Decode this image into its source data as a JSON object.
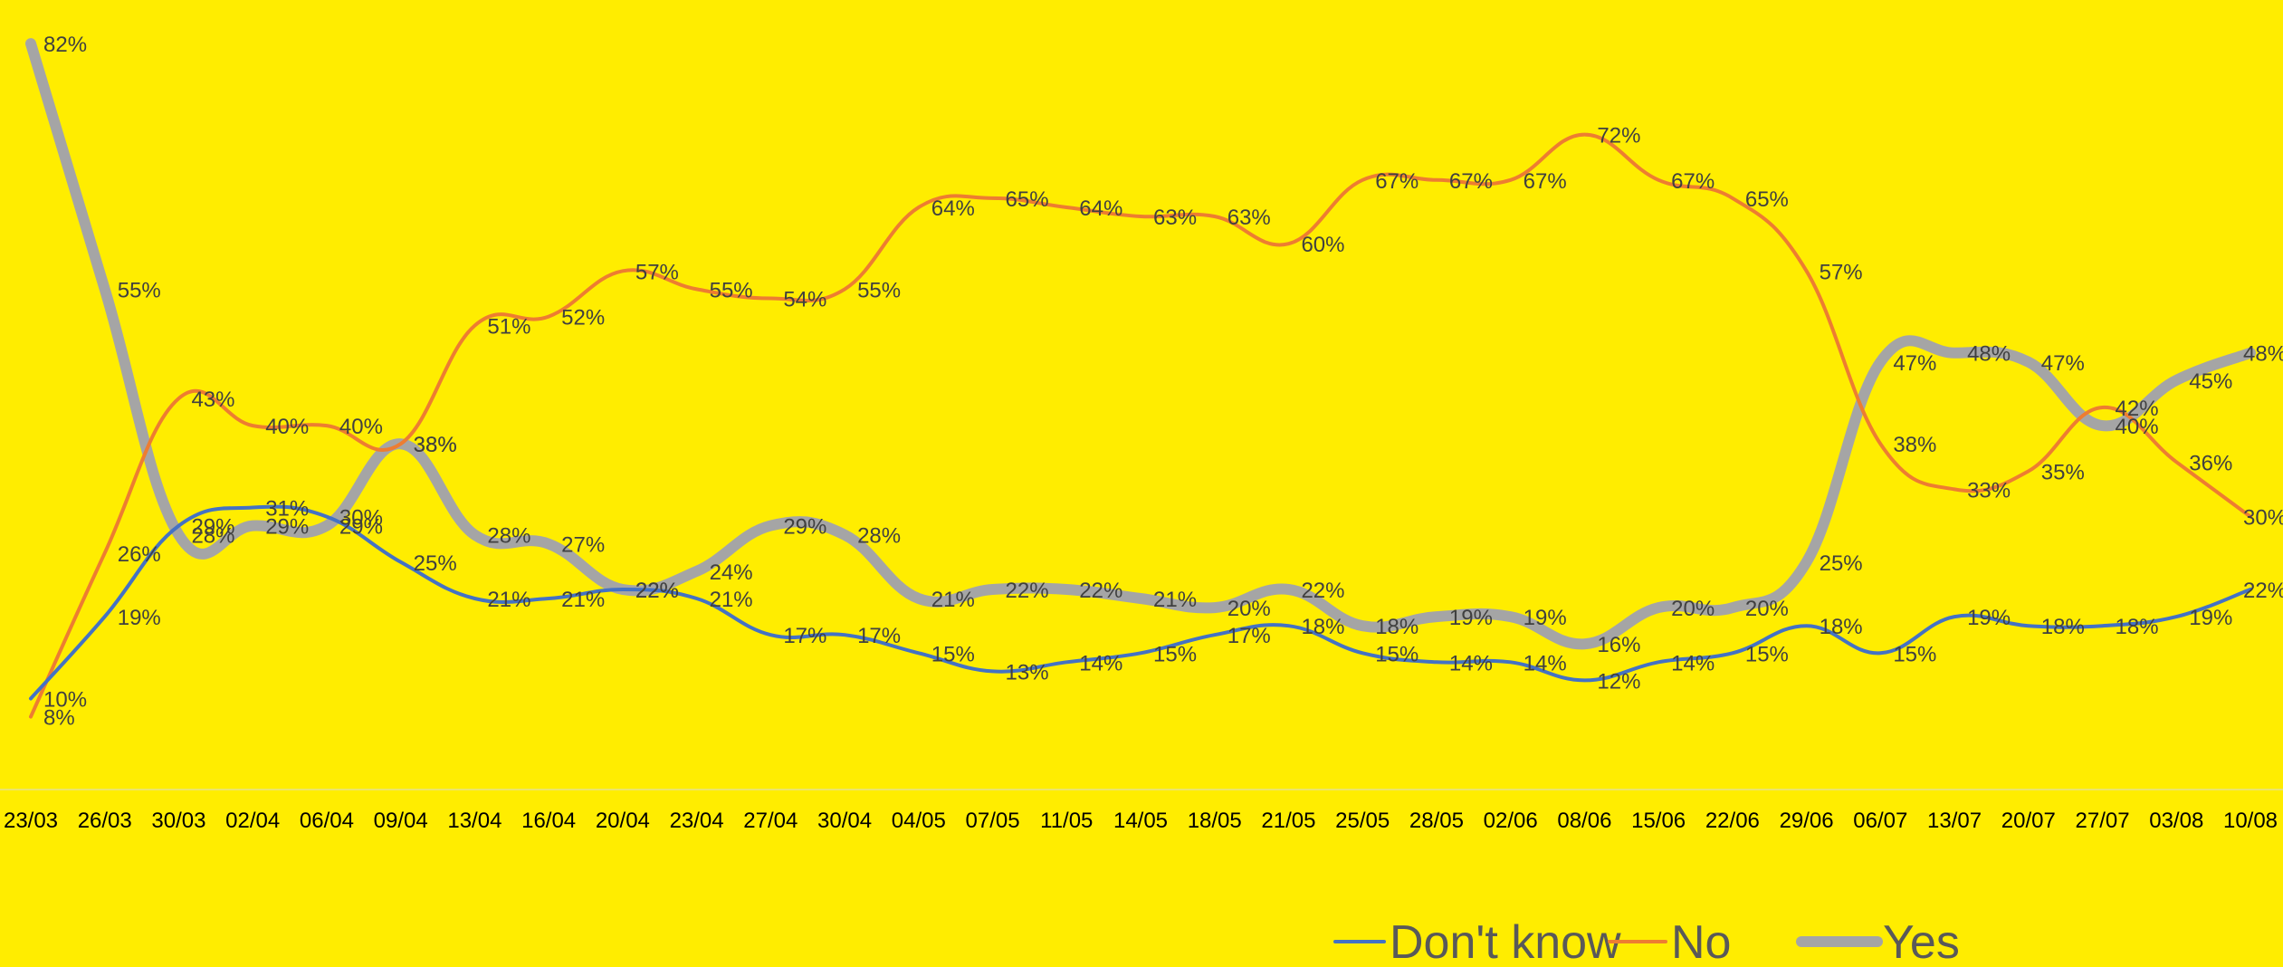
{
  "chart_data": {
    "type": "line",
    "title": "",
    "xlabel": "",
    "ylabel": "",
    "ylim": [
      0,
      85
    ],
    "grid": false,
    "legend_position": "bottom-right",
    "background_color": "#FFED00",
    "categories": [
      "23/03",
      "26/03",
      "30/03",
      "02/04",
      "06/04",
      "09/04",
      "13/04",
      "16/04",
      "20/04",
      "23/04",
      "27/04",
      "30/04",
      "04/05",
      "07/05",
      "11/05",
      "14/05",
      "18/05",
      "21/05",
      "25/05",
      "28/05",
      "02/06",
      "08/06",
      "15/06",
      "22/06",
      "29/06",
      "06/07",
      "13/07",
      "20/07",
      "27/07",
      "03/08",
      "10/08"
    ],
    "series": [
      {
        "name": "Don't know",
        "color": "#4472C4",
        "stroke": "thin",
        "values": [
          10,
          19,
          29,
          31,
          30,
          25,
          21,
          21,
          22,
          21,
          17,
          17,
          15,
          13,
          14,
          15,
          17,
          18,
          15,
          14,
          14,
          12,
          14,
          15,
          18,
          15,
          19,
          18,
          18,
          19,
          22
        ],
        "labels": [
          "10%",
          "19%",
          "29%",
          "31%",
          "30%",
          "25%",
          "21%",
          "21%",
          "22%",
          "21%",
          "17%",
          "17%",
          "15%",
          "13%",
          "14%",
          "15%",
          "17%",
          "18%",
          "15%",
          "14%",
          "14%",
          "12%",
          "14%",
          "15%",
          "18%",
          "15%",
          "19%",
          "18%",
          "18%",
          "19%",
          "22%"
        ]
      },
      {
        "name": "No",
        "color": "#ED7D31",
        "stroke": "thin",
        "values": [
          8,
          26,
          43,
          40,
          40,
          38,
          51,
          52,
          57,
          55,
          54,
          55,
          64,
          65,
          64,
          63,
          63,
          60,
          67,
          67,
          67,
          72,
          67,
          65,
          57,
          38,
          33,
          35,
          42,
          36,
          30
        ],
        "labels": [
          "8%",
          "26%",
          "43%",
          "40%",
          "40%",
          "38%",
          "51%",
          "52%",
          "57%",
          "55%",
          "54%",
          "55%",
          "64%",
          "65%",
          "64%",
          "63%",
          "63%",
          "60%",
          "67%",
          "67%",
          "67%",
          "72%",
          "67%",
          "65%",
          "57%",
          "38%",
          "33%",
          "35%",
          "42%",
          "36%",
          "30%"
        ]
      },
      {
        "name": "Yes",
        "color": "#A5A5A5",
        "stroke": "thick",
        "values": [
          82,
          55,
          28,
          29,
          29,
          38,
          28,
          27,
          22,
          24,
          29,
          28,
          21,
          22,
          22,
          21,
          20,
          22,
          18,
          19,
          19,
          16,
          20,
          20,
          25,
          47,
          48,
          47,
          40,
          45,
          48
        ],
        "labels": [
          "82%",
          "55%",
          "28%",
          "29%",
          "29%",
          "38%",
          "28%",
          "27%",
          "22%",
          "24%",
          "29%",
          "28%",
          "21%",
          "22%",
          "22%",
          "21%",
          "20%",
          "22%",
          "18%",
          "19%",
          "19%",
          "16%",
          "20%",
          "20%",
          "25%",
          "47%",
          "48%",
          "47%",
          "40%",
          "45%",
          "48%"
        ]
      }
    ]
  }
}
